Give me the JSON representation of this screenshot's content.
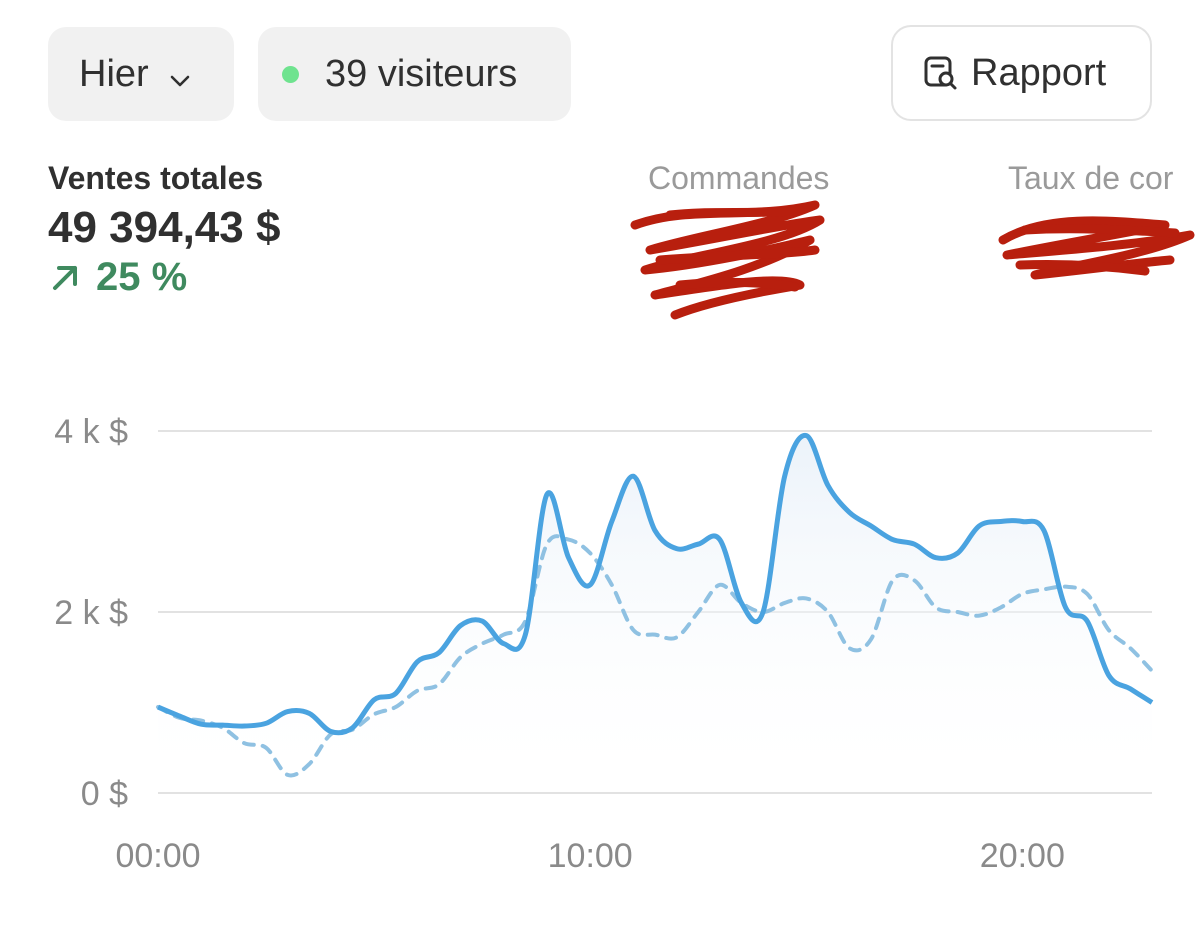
{
  "header": {
    "period_label": "Hier",
    "visitors_label": "39 visiteurs",
    "report_label": "Rapport"
  },
  "icons": {
    "period": "chevron-down-icon",
    "visitors": "live-dot-icon",
    "report": "report-search-icon"
  },
  "colors": {
    "accent": "#4aa3e0",
    "comparison": "#8fc1e2",
    "positive": "#3f8a5f",
    "live_dot": "#6fe38f"
  },
  "metrics": [
    {
      "label": "Ventes totales",
      "value": "49 394,43 $",
      "delta": "25 %"
    },
    {
      "label": "Commandes",
      "value": "",
      "delta": ""
    },
    {
      "label": "Taux de cor",
      "value": "",
      "delta": ""
    }
  ],
  "chart_data": {
    "type": "area",
    "x_ticks": [
      "00:00",
      "10:00",
      "20:00"
    ],
    "y_ticks": [
      "0 $",
      "2 k $",
      "4 k $"
    ],
    "ylim": [
      0,
      4000
    ],
    "grid": true,
    "x": [
      0,
      0.5,
      1,
      1.5,
      2,
      2.5,
      3,
      3.5,
      4,
      4.5,
      5,
      5.5,
      6,
      6.5,
      7,
      7.5,
      8,
      8.5,
      9,
      9.5,
      10,
      10.5,
      11,
      11.5,
      12,
      12.5,
      13,
      13.5,
      14,
      14.5,
      15,
      15.5,
      16,
      16.5,
      17,
      17.5,
      18,
      18.5,
      19,
      19.5,
      20,
      20.5,
      21,
      21.5,
      22,
      22.5,
      23
    ],
    "series": [
      {
        "values": [
          950,
          850,
          760,
          750,
          740,
          770,
          900,
          880,
          680,
          720,
          1030,
          1100,
          1450,
          1550,
          1850,
          1900,
          1650,
          1750,
          3300,
          2600,
          2300,
          3000,
          3500,
          2900,
          2700,
          2750,
          2800,
          2100,
          2000,
          3500,
          3950,
          3400,
          3100,
          2950,
          2800,
          2750,
          2600,
          2650,
          2950,
          3000,
          3000,
          2900,
          2050,
          1900,
          1300,
          1150,
          1000
        ]
      },
      {
        "values": [
          950,
          830,
          800,
          720,
          550,
          500,
          200,
          320,
          650,
          700,
          870,
          950,
          1130,
          1200,
          1500,
          1650,
          1750,
          1900,
          2750,
          2800,
          2650,
          2300,
          1800,
          1750,
          1720,
          2000,
          2300,
          2100,
          2000,
          2100,
          2150,
          2000,
          1600,
          1700,
          2350,
          2350,
          2050,
          2000,
          1960,
          2050,
          2200,
          2250,
          2280,
          2200,
          1800,
          1600,
          1350
        ]
      }
    ]
  }
}
